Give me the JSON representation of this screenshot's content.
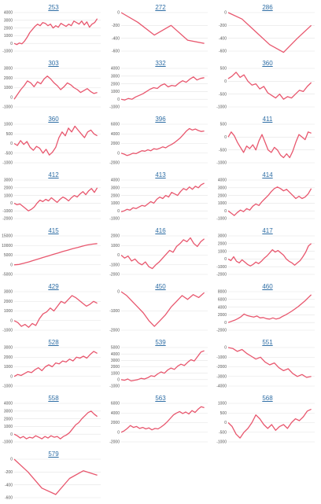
{
  "colors": {
    "line": "#e8576e",
    "link": "#2f6ea5",
    "grid": "#e3e3e3"
  },
  "chart_data": [
    {
      "type": "line",
      "title": "253",
      "yticks": [
        -1000,
        0,
        1000,
        2000,
        3000,
        4000
      ],
      "values": [
        0,
        -150,
        50,
        -50,
        300,
        800,
        1400,
        1800,
        2200,
        2500,
        2300,
        2700,
        2600,
        2300,
        2500,
        2000,
        2300,
        2100,
        2600,
        2400,
        2200,
        2500,
        2300,
        2900,
        2700,
        2500,
        2900,
        2400,
        2800,
        2100,
        2500,
        2700,
        3200
      ]
    },
    {
      "type": "line",
      "title": "272",
      "yticks": [
        -600,
        -400,
        -200,
        0
      ],
      "values": [
        0,
        -150,
        -350,
        -200,
        -430,
        -480
      ]
    },
    {
      "type": "line",
      "title": "286",
      "yticks": [
        -600,
        -400,
        -200,
        0
      ],
      "values": [
        0,
        -100,
        -300,
        -500,
        -620,
        -400,
        -200
      ]
    },
    {
      "type": "line",
      "title": "303",
      "yticks": [
        -1000,
        0,
        1000,
        2000,
        3000
      ],
      "values": [
        -200,
        300,
        800,
        1200,
        1700,
        1500,
        1100,
        1600,
        1400,
        1900,
        2200,
        1900,
        1500,
        1200,
        800,
        1100,
        1500,
        1300,
        1000,
        800,
        500,
        700,
        900,
        600,
        400,
        500
      ]
    },
    {
      "type": "line",
      "title": "332",
      "yticks": [
        -1000,
        0,
        1000,
        2000,
        3000,
        4000
      ],
      "values": [
        0,
        -100,
        100,
        0,
        300,
        500,
        700,
        1000,
        1300,
        1500,
        1400,
        1800,
        2000,
        1600,
        1800,
        1700,
        2100,
        2400,
        2200,
        2600,
        2900,
        2500,
        2700,
        2800
      ]
    },
    {
      "type": "line",
      "title": "360",
      "yticks": [
        -1000,
        -500,
        0,
        500
      ],
      "values": [
        100,
        200,
        350,
        150,
        250,
        0,
        -150,
        -100,
        -300,
        -200,
        -450,
        -550,
        -650,
        -500,
        -700,
        -600,
        -650,
        -500,
        -350,
        -400,
        -200,
        -50
      ]
    },
    {
      "type": "line",
      "title": "360",
      "yticks": [
        -1000,
        -500,
        0,
        500,
        1000
      ],
      "values": [
        0,
        -100,
        150,
        -50,
        100,
        -200,
        -350,
        -150,
        -250,
        -500,
        -300,
        -600,
        -450,
        -200,
        300,
        600,
        400,
        800,
        600,
        900,
        700,
        500,
        300,
        600,
        700,
        500,
        400
      ]
    },
    {
      "type": "line",
      "title": "396",
      "yticks": [
        -2000,
        0,
        2000,
        4000,
        6000
      ],
      "values": [
        0,
        -200,
        -500,
        -300,
        0,
        -100,
        200,
        500,
        400,
        700,
        500,
        900,
        800,
        1000,
        1300,
        1100,
        1500,
        1800,
        2200,
        2700,
        3200,
        3900,
        4600,
        5100,
        4800,
        5000,
        4700,
        4500,
        4600
      ]
    },
    {
      "type": "line",
      "title": "411",
      "yticks": [
        -1000,
        -500,
        0,
        500
      ],
      "values": [
        0,
        200,
        50,
        -200,
        -400,
        -600,
        -350,
        -450,
        -300,
        -500,
        -150,
        100,
        -200,
        -500,
        -600,
        -400,
        -500,
        -700,
        -800,
        -650,
        -800,
        -550,
        -200,
        100,
        0,
        -100,
        200,
        150
      ]
    },
    {
      "type": "line",
      "title": "412",
      "yticks": [
        -2000,
        -1000,
        0,
        1000,
        2000,
        3000
      ],
      "values": [
        0,
        -200,
        -100,
        -400,
        -700,
        -1000,
        -800,
        -500,
        0,
        400,
        200,
        500,
        300,
        700,
        400,
        100,
        500,
        800,
        600,
        300,
        700,
        1000,
        800,
        1200,
        1500,
        1100,
        1600,
        1900,
        1400,
        2000
      ]
    },
    {
      "type": "line",
      "title": "413",
      "yticks": [
        -1000,
        0,
        1000,
        2000,
        3000,
        4000
      ],
      "values": [
        -100,
        0,
        200,
        100,
        400,
        300,
        500,
        700,
        600,
        900,
        1200,
        1000,
        1500,
        1800,
        1600,
        2000,
        1800,
        2400,
        2200,
        2000,
        2500,
        2900,
        2700,
        3100,
        2800,
        3200,
        3000,
        3400,
        3600
      ]
    },
    {
      "type": "line",
      "title": "414",
      "yticks": [
        -1000,
        0,
        1000,
        2000,
        3000,
        4000
      ],
      "values": [
        0,
        -300,
        -600,
        -200,
        100,
        -100,
        300,
        100,
        600,
        900,
        700,
        1200,
        1600,
        2000,
        2500,
        2900,
        3100,
        2900,
        2600,
        2800,
        2400,
        2000,
        1600,
        1900,
        1600,
        1800,
        2200,
        2900
      ]
    },
    {
      "type": "line",
      "title": "415",
      "yticks": [
        -5000,
        0,
        5000,
        10000,
        15000
      ],
      "values": [
        0,
        200,
        800,
        1500,
        2300,
        3100,
        3900,
        4600,
        5400,
        6100,
        6900,
        7600,
        8400,
        9000,
        9700,
        10300,
        10700,
        11000
      ]
    },
    {
      "type": "line",
      "title": "416",
      "yticks": [
        -2000,
        -1000,
        0,
        1000,
        2000
      ],
      "values": [
        0,
        -300,
        -100,
        -600,
        -400,
        -800,
        -1000,
        -700,
        -1200,
        -1400,
        -1000,
        -700,
        -300,
        100,
        500,
        300,
        900,
        1200,
        1600,
        1400,
        1800,
        1200,
        900,
        1400,
        1700
      ]
    },
    {
      "type": "line",
      "title": "417",
      "yticks": [
        -2000,
        -1000,
        0,
        1000,
        2000,
        3000
      ],
      "values": [
        0,
        -200,
        300,
        -300,
        -500,
        -100,
        -400,
        -700,
        -900,
        -700,
        -400,
        -600,
        -300,
        100,
        400,
        800,
        1200,
        900,
        1100,
        800,
        500,
        0,
        -300,
        -500,
        -800,
        -500,
        -200,
        300,
        900,
        1700,
        2000
      ]
    },
    {
      "type": "line",
      "title": "429",
      "yticks": [
        -1000,
        0,
        1000,
        2000,
        3000
      ],
      "values": [
        0,
        -200,
        -600,
        -400,
        -700,
        -300,
        -500,
        200,
        700,
        900,
        1300,
        1000,
        1500,
        2000,
        1800,
        2200,
        2600,
        2400,
        2100,
        1800,
        1500,
        1700,
        2000,
        1800
      ]
    },
    {
      "type": "line",
      "title": "450",
      "yticks": [
        -2000,
        -1000,
        0
      ],
      "values": [
        0,
        -200,
        -500,
        -800,
        -1100,
        -1500,
        -1800,
        -1500,
        -1200,
        -800,
        -500,
        -200,
        -400,
        -150,
        -300,
        -50
      ]
    },
    {
      "type": "line",
      "title": "460",
      "yticks": [
        -2000,
        0,
        2000,
        4000,
        6000,
        8000
      ],
      "values": [
        0,
        300,
        600,
        1000,
        1500,
        2200,
        1800,
        1600,
        1400,
        1700,
        1200,
        1300,
        1000,
        900,
        1200,
        900,
        1100,
        1600,
        2000,
        2500,
        3000,
        3600,
        4200,
        4900,
        5600,
        6400,
        7200
      ]
    },
    {
      "type": "line",
      "title": "528",
      "yticks": [
        -1000,
        0,
        1000,
        2000,
        3000
      ],
      "values": [
        0,
        200,
        100,
        300,
        500,
        400,
        700,
        900,
        600,
        1000,
        1200,
        1000,
        1400,
        1300,
        1600,
        1500,
        1800,
        1600,
        2000,
        1900,
        2100,
        1900,
        2300,
        2600,
        2400
      ]
    },
    {
      "type": "line",
      "title": "539",
      "yticks": [
        -1000,
        0,
        1000,
        2000,
        3000,
        4000,
        5000
      ],
      "values": [
        0,
        -100,
        100,
        -200,
        -100,
        0,
        200,
        100,
        300,
        600,
        500,
        900,
        1200,
        1000,
        1500,
        1800,
        1600,
        2100,
        2400,
        2200,
        2700,
        3100,
        2900,
        3600,
        4300,
        4500
      ]
    },
    {
      "type": "line",
      "title": "551",
      "yticks": [
        -4000,
        -3000,
        -2000,
        -1000,
        0
      ],
      "values": [
        0,
        -100,
        -400,
        -200,
        -600,
        -900,
        -1200,
        -1000,
        -1500,
        -1800,
        -1600,
        -2100,
        -2400,
        -2200,
        -2700,
        -3000,
        -2800,
        -3100,
        -3000
      ]
    },
    {
      "type": "line",
      "title": "558",
      "yticks": [
        -1000,
        0,
        1000,
        2000,
        3000,
        4000
      ],
      "values": [
        0,
        -200,
        -500,
        -300,
        -600,
        -400,
        -500,
        -200,
        -400,
        -600,
        -300,
        -500,
        -200,
        -400,
        -300,
        -600,
        -300,
        -100,
        200,
        700,
        1200,
        1500,
        2000,
        2400,
        2800,
        3000,
        2600,
        2300
      ]
    },
    {
      "type": "line",
      "title": "563",
      "yticks": [
        -2000,
        0,
        2000,
        4000,
        6000
      ],
      "values": [
        0,
        300,
        800,
        1400,
        1000,
        1200,
        800,
        1000,
        700,
        900,
        500,
        800,
        700,
        1100,
        1600,
        2200,
        2900,
        3600,
        4000,
        4300,
        3900,
        4200,
        3800,
        4500,
        4100,
        4800,
        5300,
        5100
      ]
    },
    {
      "type": "line",
      "title": "568",
      "yticks": [
        -1000,
        -500,
        0,
        500,
        1000
      ],
      "values": [
        0,
        -200,
        -600,
        -800,
        -500,
        -300,
        0,
        400,
        200,
        -100,
        -300,
        -100,
        -400,
        -200,
        -100,
        -300,
        0,
        200,
        100,
        300,
        600,
        700
      ]
    },
    {
      "type": "line",
      "title": "579",
      "yticks": [
        -600,
        -400,
        -200,
        0
      ],
      "values": [
        0,
        -200,
        -450,
        -550,
        -300,
        -180,
        -250
      ]
    }
  ]
}
